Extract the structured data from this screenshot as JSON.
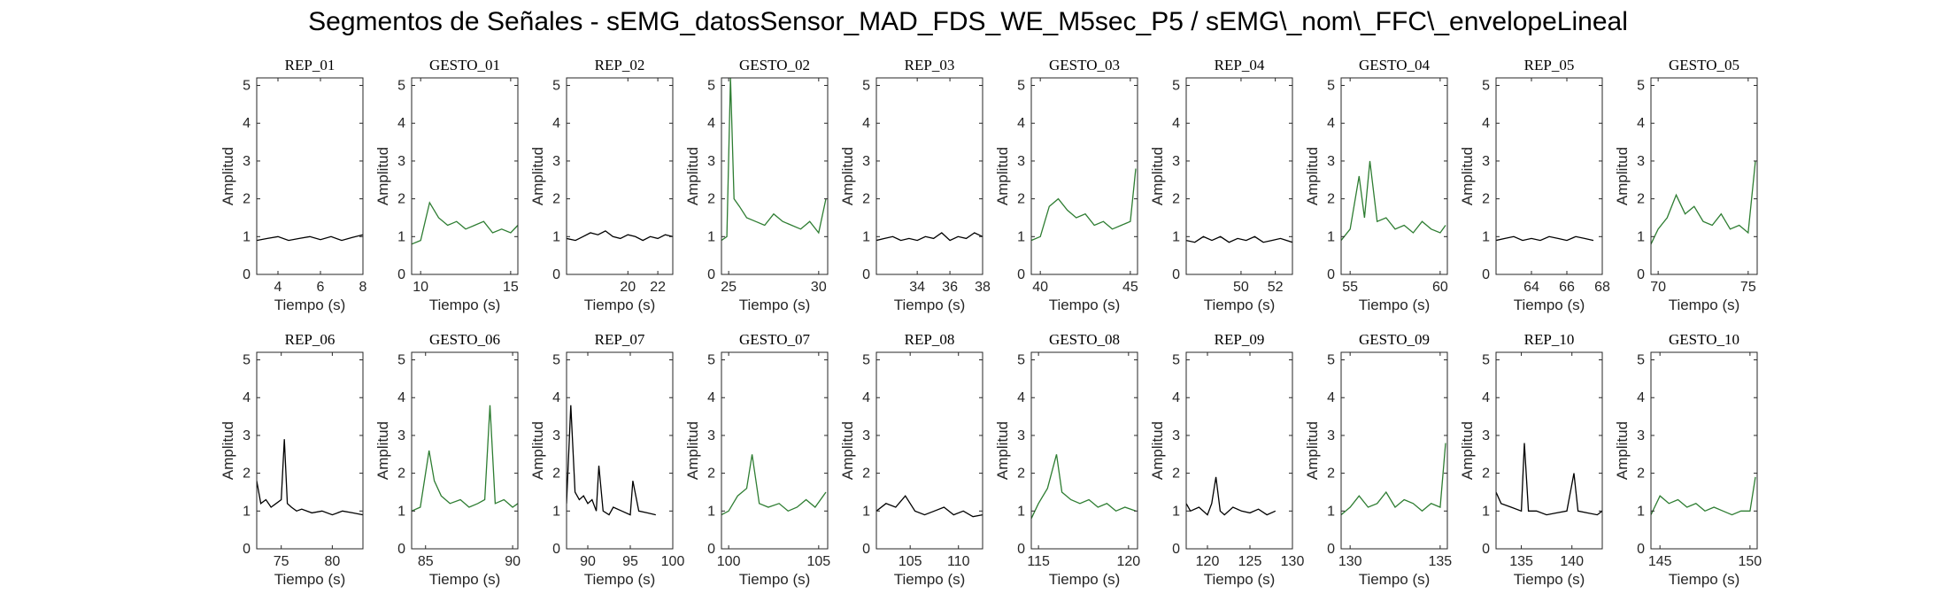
{
  "title": "Segmentos de Señales - sEMG_datosSensor_MAD_FDS_WE_M5sec_P5 / sEMG\\_nom\\_FFC\\_envelopeLineal",
  "colors": {
    "rep": "#000000",
    "gesto": "#2e7d32",
    "axis": "#262626"
  },
  "chart_data": [
    {
      "type": "line",
      "title": "REP_01",
      "xlabel": "Tiempo (s)",
      "ylabel": "Amplitud",
      "xlim": [
        3,
        8
      ],
      "ylim": [
        0,
        5.2
      ],
      "xticks": [
        4,
        6,
        8
      ],
      "yticks": [
        0,
        1,
        2,
        3,
        4,
        5
      ],
      "series": [
        {
          "color": "#000000",
          "x": [
            3,
            3.5,
            4,
            4.5,
            5,
            5.5,
            6,
            6.5,
            7,
            7.5,
            8
          ],
          "y": [
            0.9,
            0.95,
            1.0,
            0.9,
            0.95,
            1.0,
            0.92,
            1.0,
            0.9,
            0.98,
            1.05
          ]
        }
      ]
    },
    {
      "type": "line",
      "title": "GESTO_01",
      "xlabel": "Tiempo (s)",
      "ylabel": "Amplitud",
      "xlim": [
        9.5,
        15.4
      ],
      "ylim": [
        0,
        5.2
      ],
      "xticks": [
        10,
        15
      ],
      "yticks": [
        0,
        1,
        2,
        3,
        4,
        5
      ],
      "series": [
        {
          "color": "#2e7d32",
          "x": [
            9.5,
            10,
            10.5,
            11,
            11.5,
            12,
            12.5,
            13,
            13.5,
            14,
            14.5,
            15,
            15.4
          ],
          "y": [
            0.8,
            0.9,
            1.9,
            1.5,
            1.3,
            1.4,
            1.2,
            1.3,
            1.4,
            1.1,
            1.2,
            1.1,
            1.3
          ]
        }
      ]
    },
    {
      "type": "line",
      "title": "REP_02",
      "xlabel": "Tiempo (s)",
      "ylabel": "Amplitud",
      "xlim": [
        15.9,
        23
      ],
      "ylim": [
        0,
        5.2
      ],
      "xticks": [
        20,
        22
      ],
      "yticks": [
        0,
        1,
        2,
        3,
        4,
        5
      ],
      "series": [
        {
          "color": "#000000",
          "x": [
            15.9,
            16.5,
            17,
            17.5,
            18,
            18.5,
            19,
            19.5,
            20,
            20.5,
            21,
            21.5,
            22,
            22.5,
            23
          ],
          "y": [
            0.95,
            0.9,
            1.0,
            1.1,
            1.05,
            1.15,
            1.0,
            0.95,
            1.05,
            1.0,
            0.9,
            1.0,
            0.95,
            1.05,
            1.0
          ]
        }
      ]
    },
    {
      "type": "line",
      "title": "GESTO_02",
      "xlabel": "Tiempo (s)",
      "ylabel": "Amplitud",
      "xlim": [
        24.6,
        30.5
      ],
      "ylim": [
        0,
        5.2
      ],
      "xticks": [
        25,
        30
      ],
      "yticks": [
        0,
        1,
        2,
        3,
        4,
        5
      ],
      "series": [
        {
          "color": "#2e7d32",
          "x": [
            24.6,
            24.9,
            25.1,
            25.3,
            25.6,
            26,
            26.5,
            27,
            27.5,
            28,
            28.5,
            29,
            29.5,
            30,
            30.4
          ],
          "y": [
            0.9,
            1.0,
            5.2,
            2.0,
            1.8,
            1.5,
            1.4,
            1.3,
            1.6,
            1.4,
            1.3,
            1.2,
            1.4,
            1.1,
            2.0
          ]
        }
      ]
    },
    {
      "type": "line",
      "title": "REP_03",
      "xlabel": "Tiempo (s)",
      "ylabel": "Amplitud",
      "xlim": [
        31.5,
        38
      ],
      "ylim": [
        0,
        5.2
      ],
      "xticks": [
        34,
        36,
        38
      ],
      "yticks": [
        0,
        1,
        2,
        3,
        4,
        5
      ],
      "series": [
        {
          "color": "#000000",
          "x": [
            31.5,
            32,
            32.5,
            33,
            33.5,
            34,
            34.5,
            35,
            35.5,
            36,
            36.5,
            37,
            37.5,
            38
          ],
          "y": [
            0.9,
            0.95,
            1.0,
            0.9,
            0.95,
            0.9,
            1.0,
            0.95,
            1.1,
            0.9,
            1.0,
            0.95,
            1.1,
            1.0
          ]
        }
      ]
    },
    {
      "type": "line",
      "title": "GESTO_03",
      "xlabel": "Tiempo (s)",
      "ylabel": "Amplitud",
      "xlim": [
        39.5,
        45.4
      ],
      "ylim": [
        0,
        5.2
      ],
      "xticks": [
        40,
        45
      ],
      "yticks": [
        0,
        1,
        2,
        3,
        4,
        5
      ],
      "series": [
        {
          "color": "#2e7d32",
          "x": [
            39.5,
            40,
            40.5,
            41,
            41.5,
            42,
            42.5,
            43,
            43.5,
            44,
            44.5,
            45,
            45.3
          ],
          "y": [
            0.9,
            1.0,
            1.8,
            2.0,
            1.7,
            1.5,
            1.6,
            1.3,
            1.4,
            1.2,
            1.3,
            1.4,
            2.8
          ]
        }
      ]
    },
    {
      "type": "line",
      "title": "REP_04",
      "xlabel": "Tiempo (s)",
      "ylabel": "Amplitud",
      "xlim": [
        46.8,
        53
      ],
      "ylim": [
        0,
        5.2
      ],
      "xticks": [
        50,
        52
      ],
      "yticks": [
        0,
        1,
        2,
        3,
        4,
        5
      ],
      "series": [
        {
          "color": "#000000",
          "x": [
            46.8,
            47.3,
            47.8,
            48.3,
            48.8,
            49.3,
            49.8,
            50.3,
            50.8,
            51.3,
            51.8,
            52.3,
            53
          ],
          "y": [
            0.9,
            0.85,
            1.0,
            0.9,
            1.0,
            0.85,
            0.95,
            0.9,
            1.0,
            0.85,
            0.9,
            0.95,
            0.85
          ]
        }
      ]
    },
    {
      "type": "line",
      "title": "GESTO_04",
      "xlabel": "Tiempo (s)",
      "ylabel": "Amplitud",
      "xlim": [
        54.5,
        60.4
      ],
      "ylim": [
        0,
        5.2
      ],
      "xticks": [
        55,
        60
      ],
      "yticks": [
        0,
        1,
        2,
        3,
        4,
        5
      ],
      "series": [
        {
          "color": "#2e7d32",
          "x": [
            54.5,
            55,
            55.5,
            55.8,
            56.1,
            56.5,
            57,
            57.5,
            58,
            58.5,
            59,
            59.5,
            60,
            60.3
          ],
          "y": [
            0.9,
            1.2,
            2.6,
            1.5,
            3.0,
            1.4,
            1.5,
            1.2,
            1.3,
            1.1,
            1.4,
            1.2,
            1.1,
            1.3
          ]
        }
      ]
    },
    {
      "type": "line",
      "title": "REP_05",
      "xlabel": "Tiempo (s)",
      "ylabel": "Amplitud",
      "xlim": [
        62,
        68
      ],
      "ylim": [
        0,
        5.2
      ],
      "xticks": [
        64,
        66,
        68
      ],
      "yticks": [
        0,
        1,
        2,
        3,
        4,
        5
      ],
      "series": [
        {
          "color": "#000000",
          "x": [
            62,
            62.5,
            63,
            63.5,
            64,
            64.5,
            65,
            65.5,
            66,
            66.5,
            67,
            67.5
          ],
          "y": [
            0.9,
            0.95,
            1.0,
            0.9,
            0.95,
            0.9,
            1.0,
            0.95,
            0.9,
            1.0,
            0.95,
            0.9
          ]
        }
      ]
    },
    {
      "type": "line",
      "title": "GESTO_05",
      "xlabel": "Tiempo (s)",
      "ylabel": "Amplitud",
      "xlim": [
        69.6,
        75.5
      ],
      "ylim": [
        0,
        5.2
      ],
      "xticks": [
        70,
        75
      ],
      "yticks": [
        0,
        1,
        2,
        3,
        4,
        5
      ],
      "series": [
        {
          "color": "#2e7d32",
          "x": [
            69.6,
            70,
            70.5,
            71,
            71.5,
            72,
            72.5,
            73,
            73.5,
            74,
            74.5,
            75,
            75.4
          ],
          "y": [
            0.8,
            1.2,
            1.5,
            2.1,
            1.6,
            1.8,
            1.4,
            1.3,
            1.6,
            1.2,
            1.3,
            1.1,
            3.0
          ]
        }
      ]
    },
    {
      "type": "line",
      "title": "REP_06",
      "xlabel": "Tiempo (s)",
      "ylabel": "Amplitud",
      "xlim": [
        72.6,
        83
      ],
      "ylim": [
        0,
        5.2
      ],
      "xticks": [
        75,
        80
      ],
      "yticks": [
        0,
        1,
        2,
        3,
        4,
        5
      ],
      "series": [
        {
          "color": "#000000",
          "x": [
            72.6,
            73,
            73.5,
            74,
            74.5,
            75,
            75.3,
            75.6,
            76,
            76.5,
            77,
            78,
            79,
            80,
            81,
            82,
            83
          ],
          "y": [
            1.8,
            1.2,
            1.3,
            1.1,
            1.2,
            1.3,
            2.9,
            1.2,
            1.1,
            1.0,
            1.05,
            0.95,
            1.0,
            0.9,
            1.0,
            0.95,
            0.9
          ]
        }
      ]
    },
    {
      "type": "line",
      "title": "GESTO_06",
      "xlabel": "Tiempo (s)",
      "ylabel": "Amplitud",
      "xlim": [
        84.2,
        90.3
      ],
      "ylim": [
        0,
        5.2
      ],
      "xticks": [
        85,
        90
      ],
      "yticks": [
        0,
        1,
        2,
        3,
        4,
        5
      ],
      "series": [
        {
          "color": "#2e7d32",
          "x": [
            84.2,
            84.7,
            85.2,
            85.5,
            85.9,
            86.4,
            87,
            87.5,
            88,
            88.4,
            88.7,
            89,
            89.5,
            90,
            90.3
          ],
          "y": [
            1.0,
            1.1,
            2.6,
            1.8,
            1.4,
            1.2,
            1.3,
            1.1,
            1.2,
            1.3,
            3.8,
            1.2,
            1.3,
            1.1,
            1.2
          ]
        }
      ]
    },
    {
      "type": "line",
      "title": "REP_07",
      "xlabel": "Tiempo (s)",
      "ylabel": "Amplitud",
      "xlim": [
        87.5,
        100
      ],
      "ylim": [
        0,
        5.2
      ],
      "xticks": [
        90,
        95,
        100
      ],
      "yticks": [
        0,
        1,
        2,
        3,
        4,
        5
      ],
      "series": [
        {
          "color": "#000000",
          "x": [
            87.5,
            88,
            88.5,
            89,
            89.5,
            90,
            90.5,
            91,
            91.3,
            91.8,
            92.5,
            93,
            94,
            95,
            95.3,
            96,
            97,
            98
          ],
          "y": [
            1.2,
            3.8,
            1.5,
            1.3,
            1.4,
            1.2,
            1.3,
            1.0,
            2.2,
            1.0,
            0.9,
            1.1,
            1.0,
            0.9,
            1.8,
            1.0,
            0.95,
            0.9
          ]
        }
      ]
    },
    {
      "type": "line",
      "title": "GESTO_07",
      "xlabel": "Tiempo (s)",
      "ylabel": "Amplitud",
      "xlim": [
        99.6,
        105.5
      ],
      "ylim": [
        0,
        5.2
      ],
      "xticks": [
        100,
        105
      ],
      "yticks": [
        0,
        1,
        2,
        3,
        4,
        5
      ],
      "series": [
        {
          "color": "#2e7d32",
          "x": [
            99.6,
            100,
            100.5,
            101,
            101.3,
            101.7,
            102.2,
            102.8,
            103.3,
            103.8,
            104.3,
            104.8,
            105.4
          ],
          "y": [
            0.9,
            1.0,
            1.4,
            1.6,
            2.5,
            1.2,
            1.1,
            1.2,
            1.0,
            1.1,
            1.3,
            1.1,
            1.5
          ]
        }
      ]
    },
    {
      "type": "line",
      "title": "REP_08",
      "xlabel": "Tiempo (s)",
      "ylabel": "Amplitud",
      "xlim": [
        101.5,
        112.5
      ],
      "ylim": [
        0,
        5.2
      ],
      "xticks": [
        105,
        110
      ],
      "yticks": [
        0,
        1,
        2,
        3,
        4,
        5
      ],
      "series": [
        {
          "color": "#000000",
          "x": [
            101.5,
            102.5,
            103.5,
            104.5,
            105.5,
            106.5,
            107.5,
            108.5,
            109.5,
            110.5,
            111.5,
            112.5
          ],
          "y": [
            1.0,
            1.2,
            1.1,
            1.4,
            1.0,
            0.9,
            1.0,
            1.1,
            0.9,
            1.0,
            0.85,
            0.9
          ]
        }
      ]
    },
    {
      "type": "line",
      "title": "GESTO_08",
      "xlabel": "Tiempo (s)",
      "ylabel": "Amplitud",
      "xlim": [
        114.6,
        120.5
      ],
      "ylim": [
        0,
        5.2
      ],
      "xticks": [
        115,
        120
      ],
      "yticks": [
        0,
        1,
        2,
        3,
        4,
        5
      ],
      "series": [
        {
          "color": "#2e7d32",
          "x": [
            114.6,
            115,
            115.5,
            116,
            116.3,
            116.8,
            117.3,
            117.8,
            118.3,
            118.8,
            119.3,
            119.8,
            120.4
          ],
          "y": [
            0.8,
            1.2,
            1.6,
            2.5,
            1.5,
            1.3,
            1.2,
            1.3,
            1.1,
            1.2,
            1.0,
            1.1,
            1.0
          ]
        }
      ]
    },
    {
      "type": "line",
      "title": "REP_09",
      "xlabel": "Tiempo (s)",
      "ylabel": "Amplitud",
      "xlim": [
        117.5,
        130
      ],
      "ylim": [
        0,
        5.2
      ],
      "xticks": [
        120,
        125,
        130
      ],
      "yticks": [
        0,
        1,
        2,
        3,
        4,
        5
      ],
      "series": [
        {
          "color": "#000000",
          "x": [
            117.5,
            118,
            119,
            120,
            120.5,
            121,
            121.5,
            122,
            123,
            124,
            125,
            126,
            127,
            128
          ],
          "y": [
            1.2,
            1.0,
            1.1,
            0.9,
            1.2,
            1.9,
            1.0,
            0.9,
            1.1,
            1.0,
            0.95,
            1.05,
            0.9,
            1.0
          ]
        }
      ]
    },
    {
      "type": "line",
      "title": "GESTO_09",
      "xlabel": "Tiempo (s)",
      "ylabel": "Amplitud",
      "xlim": [
        129.5,
        135.4
      ],
      "ylim": [
        0,
        5.2
      ],
      "xticks": [
        130,
        135
      ],
      "yticks": [
        0,
        1,
        2,
        3,
        4,
        5
      ],
      "series": [
        {
          "color": "#2e7d32",
          "x": [
            129.5,
            130,
            130.5,
            131,
            131.5,
            132,
            132.5,
            133,
            133.5,
            134,
            134.5,
            135,
            135.3
          ],
          "y": [
            0.9,
            1.1,
            1.4,
            1.1,
            1.2,
            1.5,
            1.1,
            1.3,
            1.2,
            1.0,
            1.2,
            1.1,
            2.8
          ]
        }
      ]
    },
    {
      "type": "line",
      "title": "REP_10",
      "xlabel": "Tiempo (s)",
      "ylabel": "Amplitud",
      "xlim": [
        132.5,
        143
      ],
      "ylim": [
        0,
        5.2
      ],
      "xticks": [
        135,
        140
      ],
      "yticks": [
        0,
        1,
        2,
        3,
        4,
        5
      ],
      "series": [
        {
          "color": "#000000",
          "x": [
            132.5,
            133,
            134,
            135,
            135.3,
            135.7,
            136.5,
            137.5,
            138.5,
            139.5,
            140.2,
            140.6,
            141.5,
            142.5,
            143
          ],
          "y": [
            1.5,
            1.2,
            1.1,
            1.0,
            2.8,
            1.0,
            1.0,
            0.9,
            0.95,
            1.0,
            2.0,
            1.0,
            0.95,
            0.9,
            1.0
          ]
        }
      ]
    },
    {
      "type": "line",
      "title": "GESTO_10",
      "xlabel": "Tiempo (s)",
      "ylabel": "Amplitud",
      "xlim": [
        144.5,
        150.4
      ],
      "ylim": [
        0,
        5.2
      ],
      "xticks": [
        145,
        150
      ],
      "yticks": [
        0,
        1,
        2,
        3,
        4,
        5
      ],
      "series": [
        {
          "color": "#2e7d32",
          "x": [
            144.5,
            145,
            145.5,
            146,
            146.5,
            147,
            147.5,
            148,
            148.5,
            149,
            149.5,
            150,
            150.3
          ],
          "y": [
            0.9,
            1.4,
            1.2,
            1.3,
            1.1,
            1.2,
            1.0,
            1.1,
            1.0,
            0.9,
            1.0,
            1.0,
            1.9
          ]
        }
      ]
    }
  ]
}
